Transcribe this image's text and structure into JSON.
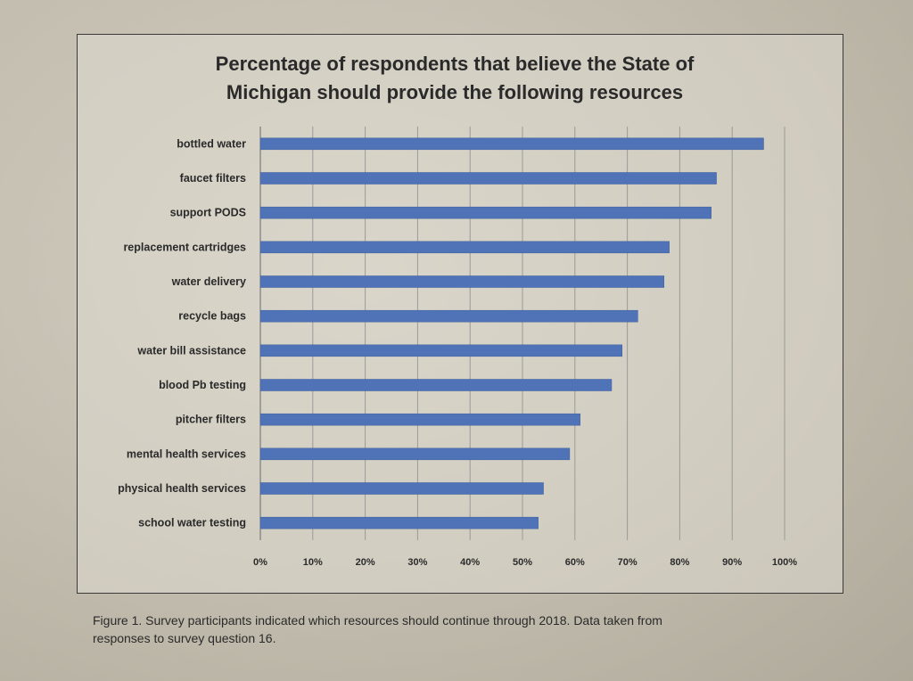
{
  "chart_data": {
    "type": "bar",
    "orientation": "horizontal",
    "title_lines": [
      "Percentage of respondents that believe the State of",
      "Michigan should provide the following resources"
    ],
    "categories": [
      "bottled water",
      "faucet filters",
      "support PODS",
      "replacement cartridges",
      "water delivery",
      "recycle bags",
      "water bill assistance",
      "blood Pb testing",
      "pitcher filters",
      "mental health services",
      "physical health services",
      "school water testing"
    ],
    "values": [
      96,
      87,
      86,
      78,
      77,
      72,
      69,
      67,
      61,
      59,
      54,
      53
    ],
    "xlim": [
      0,
      100
    ],
    "xticks": [
      "0%",
      "10%",
      "20%",
      "30%",
      "40%",
      "50%",
      "60%",
      "70%",
      "80%",
      "90%",
      "100%"
    ],
    "grid": "vertical",
    "bar_color": "#4f73b6"
  },
  "caption": {
    "line1": "Figure 1. Survey participants indicated which resources should continue through 2018. Data taken from",
    "line2": "responses to survey question 16."
  }
}
